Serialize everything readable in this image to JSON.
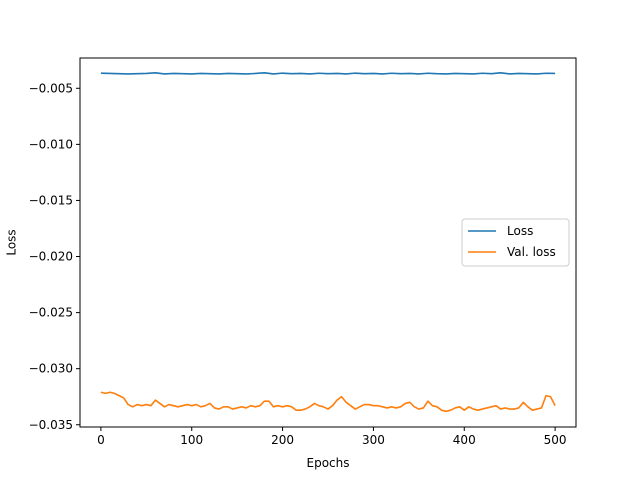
{
  "chart_data": {
    "type": "line",
    "title": "",
    "xlabel": "Epochs",
    "ylabel": "Loss",
    "xlim": [
      -23,
      523
    ],
    "ylim": [
      -0.0352,
      -0.0023
    ],
    "xticks": [
      0,
      100,
      200,
      300,
      400,
      500
    ],
    "xtick_labels": [
      "0",
      "100",
      "200",
      "300",
      "400",
      "500"
    ],
    "yticks": [
      -0.035,
      -0.03,
      -0.025,
      -0.02,
      -0.015,
      -0.01,
      -0.005
    ],
    "ytick_labels": [
      "−0.035",
      "−0.030",
      "−0.025",
      "−0.020",
      "−0.015",
      "−0.010",
      "−0.005"
    ],
    "grid": false,
    "legend_position": "center-right",
    "series": [
      {
        "name": "Loss",
        "color": "#1f77b4",
        "x": [
          0,
          10,
          20,
          30,
          40,
          50,
          60,
          70,
          80,
          90,
          100,
          110,
          120,
          130,
          140,
          150,
          160,
          170,
          180,
          190,
          200,
          210,
          220,
          230,
          240,
          250,
          260,
          270,
          280,
          290,
          300,
          310,
          320,
          330,
          340,
          350,
          360,
          370,
          380,
          390,
          400,
          410,
          420,
          430,
          440,
          450,
          460,
          470,
          480,
          490,
          500
        ],
        "y": [
          -0.00365,
          -0.00368,
          -0.0037,
          -0.00372,
          -0.0037,
          -0.00368,
          -0.00362,
          -0.00372,
          -0.00368,
          -0.0037,
          -0.00372,
          -0.00368,
          -0.0037,
          -0.00372,
          -0.00368,
          -0.0037,
          -0.00372,
          -0.00368,
          -0.00362,
          -0.00372,
          -0.00365,
          -0.0037,
          -0.00368,
          -0.00372,
          -0.00366,
          -0.0037,
          -0.00368,
          -0.00372,
          -0.00365,
          -0.0037,
          -0.00368,
          -0.00372,
          -0.00366,
          -0.0037,
          -0.00368,
          -0.00372,
          -0.00366,
          -0.0037,
          -0.00372,
          -0.00368,
          -0.0037,
          -0.00372,
          -0.00366,
          -0.0037,
          -0.00362,
          -0.00372,
          -0.00368,
          -0.0037,
          -0.00372,
          -0.00366,
          -0.00368
        ]
      },
      {
        "name": "Val. loss",
        "color": "#ff7f0e",
        "x": [
          0,
          5,
          10,
          15,
          20,
          25,
          30,
          35,
          40,
          45,
          50,
          55,
          60,
          65,
          70,
          75,
          80,
          85,
          90,
          95,
          100,
          105,
          110,
          115,
          120,
          125,
          130,
          135,
          140,
          145,
          150,
          155,
          160,
          165,
          170,
          175,
          180,
          185,
          190,
          195,
          200,
          205,
          210,
          215,
          220,
          225,
          230,
          235,
          240,
          245,
          250,
          255,
          260,
          265,
          270,
          275,
          280,
          285,
          290,
          295,
          300,
          305,
          310,
          315,
          320,
          325,
          330,
          335,
          340,
          345,
          350,
          355,
          360,
          365,
          370,
          375,
          380,
          385,
          390,
          395,
          400,
          405,
          410,
          415,
          420,
          425,
          430,
          435,
          440,
          445,
          450,
          455,
          460,
          465,
          470,
          475,
          480,
          485,
          490,
          495,
          500
        ],
        "y": [
          -0.0321,
          -0.0322,
          -0.0321,
          -0.0322,
          -0.0324,
          -0.0326,
          -0.0332,
          -0.0334,
          -0.0332,
          -0.0333,
          -0.0332,
          -0.0333,
          -0.0328,
          -0.0331,
          -0.0334,
          -0.0332,
          -0.0333,
          -0.0334,
          -0.0333,
          -0.0332,
          -0.0333,
          -0.0332,
          -0.0334,
          -0.0333,
          -0.0331,
          -0.0335,
          -0.0336,
          -0.0334,
          -0.0334,
          -0.0336,
          -0.0335,
          -0.0334,
          -0.0335,
          -0.0333,
          -0.0334,
          -0.0333,
          -0.0329,
          -0.0329,
          -0.0334,
          -0.0333,
          -0.0334,
          -0.0333,
          -0.0334,
          -0.0337,
          -0.0337,
          -0.0336,
          -0.0334,
          -0.0331,
          -0.0333,
          -0.0334,
          -0.0336,
          -0.0333,
          -0.0328,
          -0.0325,
          -0.033,
          -0.0333,
          -0.0336,
          -0.0334,
          -0.0332,
          -0.0332,
          -0.0333,
          -0.0333,
          -0.0334,
          -0.0335,
          -0.0334,
          -0.0335,
          -0.0334,
          -0.0331,
          -0.033,
          -0.0334,
          -0.0336,
          -0.0335,
          -0.0329,
          -0.0333,
          -0.0334,
          -0.0337,
          -0.0338,
          -0.0337,
          -0.0335,
          -0.0334,
          -0.0337,
          -0.0334,
          -0.0336,
          -0.0337,
          -0.0336,
          -0.0335,
          -0.0334,
          -0.0333,
          -0.0336,
          -0.0335,
          -0.0336,
          -0.0336,
          -0.0335,
          -0.033,
          -0.0334,
          -0.0337,
          -0.0336,
          -0.0335,
          -0.0324,
          -0.0325,
          -0.0333
        ]
      }
    ]
  }
}
